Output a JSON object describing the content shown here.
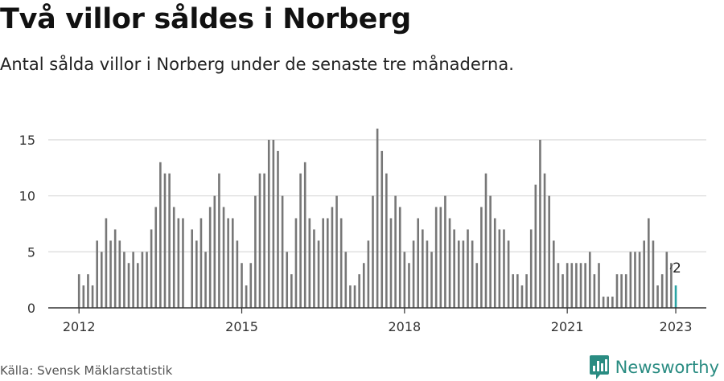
{
  "header": {
    "title": "Två villor såldes i Norberg",
    "subtitle": "Antal sålda villor i Norberg under de senaste tre månaderna."
  },
  "footer": {
    "source": "Källa: Svensk Mäklarstatistik",
    "brand": "Newsworthy",
    "brand_icon": "newsworthy-chart-logo-icon"
  },
  "colors": {
    "bar": "#777777",
    "highlight": "#2aa3a3",
    "grid": "#dddddd",
    "axis": "#333333",
    "brand": "#2a8c82"
  },
  "chart_data": {
    "type": "bar",
    "title": "Två villor såldes i Norberg",
    "subtitle": "Antal sålda villor i Norberg under de senaste tre månaderna.",
    "xlabel": "",
    "ylabel": "",
    "x_start_year": 2012,
    "x_step": "month",
    "x_ticks": [
      "2012",
      "2015",
      "2018",
      "2021",
      "2023"
    ],
    "y_ticks": [
      0,
      5,
      10,
      15
    ],
    "ylim": [
      0,
      16.5
    ],
    "grid": true,
    "legend": "none",
    "values": [
      3,
      2,
      3,
      2,
      6,
      5,
      8,
      6,
      7,
      6,
      5,
      4,
      5,
      4,
      5,
      5,
      7,
      9,
      13,
      12,
      12,
      9,
      8,
      8,
      null,
      7,
      6,
      8,
      5,
      9,
      10,
      12,
      9,
      8,
      8,
      6,
      4,
      2,
      4,
      10,
      12,
      12,
      15,
      15,
      14,
      10,
      5,
      3,
      8,
      12,
      13,
      8,
      7,
      6,
      8,
      8,
      9,
      10,
      8,
      5,
      2,
      2,
      3,
      4,
      6,
      10,
      16,
      14,
      12,
      8,
      10,
      9,
      5,
      4,
      6,
      8,
      7,
      6,
      5,
      9,
      9,
      10,
      8,
      7,
      6,
      6,
      7,
      6,
      4,
      9,
      12,
      10,
      8,
      7,
      7,
      6,
      3,
      3,
      2,
      3,
      7,
      11,
      15,
      12,
      10,
      6,
      4,
      3,
      4,
      4,
      4,
      4,
      4,
      5,
      3,
      4,
      1,
      1,
      1,
      3,
      3,
      3,
      5,
      5,
      5,
      6,
      8,
      6,
      2,
      3,
      5,
      4,
      2
    ],
    "highlight": {
      "index": 132,
      "value": 2,
      "label": "2"
    }
  }
}
